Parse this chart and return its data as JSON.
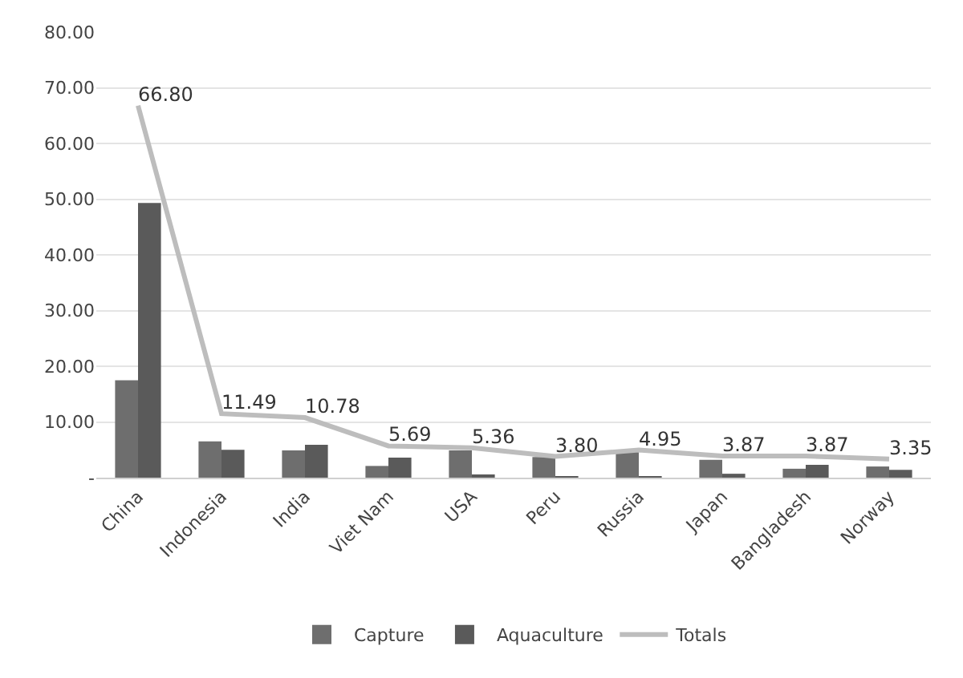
{
  "chart_data": {
    "type": "bar",
    "categories": [
      "China",
      "Indonesia",
      "India",
      "Viet Nam",
      "USA",
      "Peru",
      "Russia",
      "Japan",
      "Bangladesh",
      "Norway"
    ],
    "series": [
      {
        "name": "Capture",
        "color": "#6e6e6e",
        "values": [
          17.5,
          6.5,
          4.9,
          2.1,
          4.9,
          3.7,
          4.8,
          3.2,
          1.6,
          2.0
        ]
      },
      {
        "name": "Aquaculture",
        "color": "#5a5a5a",
        "values": [
          49.3,
          5.0,
          5.9,
          3.6,
          0.4,
          0.1,
          0.2,
          0.7,
          2.3,
          1.4
        ]
      },
      {
        "name": "Totals",
        "type": "line",
        "color": "#bdbdbd",
        "values": [
          66.8,
          11.49,
          10.78,
          5.69,
          5.36,
          3.8,
          4.95,
          3.87,
          3.87,
          3.35
        ],
        "value_labels": [
          "66.80",
          "11.49",
          "10.78",
          "5.69",
          "5.36",
          "3.80",
          "4.95",
          "3.87",
          "3.87",
          "3.35"
        ]
      }
    ],
    "ylim": [
      0,
      80
    ],
    "yticks": [
      {
        "value": 0,
        "label": "-"
      },
      {
        "value": 10,
        "label": "10.00"
      },
      {
        "value": 20,
        "label": "20.00"
      },
      {
        "value": 30,
        "label": "30.00"
      },
      {
        "value": 40,
        "label": "40.00"
      },
      {
        "value": 50,
        "label": "50.00"
      },
      {
        "value": 60,
        "label": "60.00"
      },
      {
        "value": 70,
        "label": "70.00"
      },
      {
        "value": 80,
        "label": "80.00"
      }
    ],
    "grid": "y",
    "legend": "bottom",
    "marker": "none"
  }
}
